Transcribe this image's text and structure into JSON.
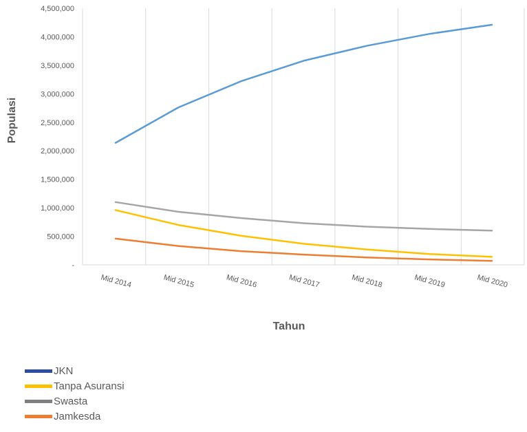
{
  "chart_data": {
    "type": "line",
    "categories": [
      "Mid 2014",
      "Mid 2015",
      "Mid 2016",
      "Mid 2017",
      "Mid 2018",
      "Mid 2019",
      "Mid 2020"
    ],
    "series": [
      {
        "name": "JKN",
        "color": "#5B9BD5",
        "legend_color": "#2F4C9E",
        "values": [
          2140000,
          2760000,
          3220000,
          3580000,
          3840000,
          4050000,
          4210000
        ]
      },
      {
        "name": "Tanpa Asuransi",
        "color": "#FFC000",
        "legend_color": "#FFC000",
        "values": [
          960000,
          700000,
          510000,
          370000,
          270000,
          190000,
          140000
        ]
      },
      {
        "name": "Swasta",
        "color": "#A5A5A5",
        "legend_color": "#7F7F7F",
        "values": [
          1100000,
          930000,
          820000,
          730000,
          670000,
          630000,
          600000
        ]
      },
      {
        "name": "Jamkesda",
        "color": "#ED7D31",
        "legend_color": "#ED7D31",
        "values": [
          460000,
          330000,
          240000,
          180000,
          130000,
          95000,
          70000
        ]
      }
    ],
    "y_ticks": [
      "-",
      "500,000",
      "1,000,000",
      "1,500,000",
      "2,000,000",
      "2,500,000",
      "3,000,000",
      "3,500,000",
      "4,000,000",
      "4,500,000"
    ],
    "ylim": [
      0,
      4500000
    ],
    "xlabel": "Tahun",
    "ylabel": "Populasi",
    "vertical_gridlines": true,
    "legend_placement": "bottom-left"
  }
}
